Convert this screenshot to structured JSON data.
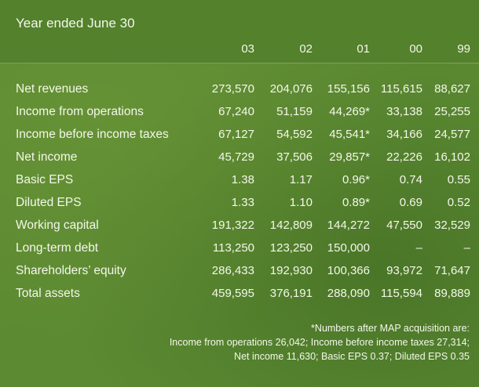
{
  "title": "Year ended June 30",
  "years": [
    "03",
    "02",
    "01",
    "00",
    "99"
  ],
  "rows": [
    {
      "label": "Net revenues",
      "values": [
        "273,570",
        "204,076",
        "155,156",
        "115,615",
        "88,627"
      ]
    },
    {
      "label": "Income from operations",
      "values": [
        "67,240",
        "51,159",
        "44,269*",
        "33,138",
        "25,255"
      ]
    },
    {
      "label": "Income before income taxes",
      "values": [
        "67,127",
        "54,592",
        "45,541*",
        "34,166",
        "24,577"
      ]
    },
    {
      "label": "Net income",
      "values": [
        "45,729",
        "37,506",
        "29,857*",
        "22,226",
        "16,102"
      ]
    },
    {
      "label": "Basic EPS",
      "values": [
        "1.38",
        "1.17",
        "0.96*",
        "0.74",
        "0.55"
      ]
    },
    {
      "label": "Diluted EPS",
      "values": [
        "1.33",
        "1.10",
        "0.89*",
        "0.69",
        "0.52"
      ]
    },
    {
      "label": "Working capital",
      "values": [
        "191,322",
        "142,809",
        "144,272",
        "47,550",
        "32,529"
      ]
    },
    {
      "label": "Long-term debt",
      "values": [
        "113,250",
        "123,250",
        "150,000",
        "–",
        "–"
      ]
    },
    {
      "label": "Shareholders’ equity",
      "values": [
        "286,433",
        "192,930",
        "100,366",
        "93,972",
        "71,647"
      ]
    },
    {
      "label": "Total assets",
      "values": [
        "459,595",
        "376,191",
        "288,090",
        "115,594",
        "89,889"
      ]
    }
  ],
  "footnote": [
    "*Numbers after MAP acquisition are:",
    "Income from operations 26,042; Income before income taxes 27,314;",
    "Net income 11,630; Basic EPS 0.37; Diluted EPS 0.35"
  ]
}
